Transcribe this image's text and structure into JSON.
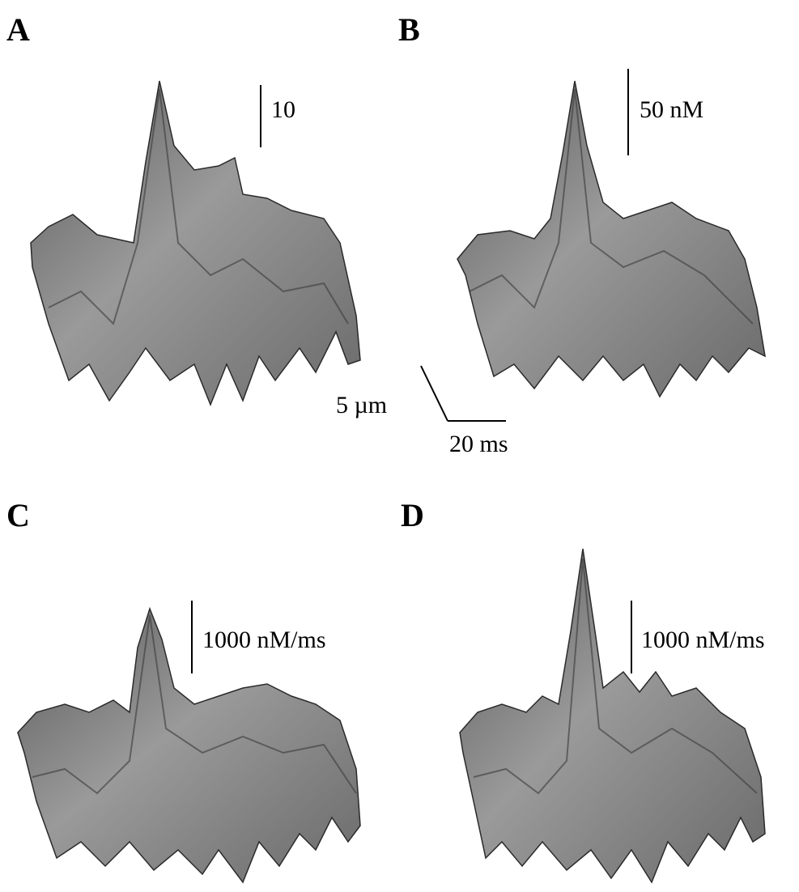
{
  "panels": [
    {
      "label": "A",
      "scale_bar": "10"
    },
    {
      "label": "B",
      "scale_bar": "50 nM"
    },
    {
      "label": "C",
      "scale_bar": "1000 nM/ms"
    },
    {
      "label": "D",
      "scale_bar": "1000 nM/ms"
    }
  ],
  "axes_scale": {
    "y_label": "5 µm",
    "x_label": "20 ms"
  }
}
